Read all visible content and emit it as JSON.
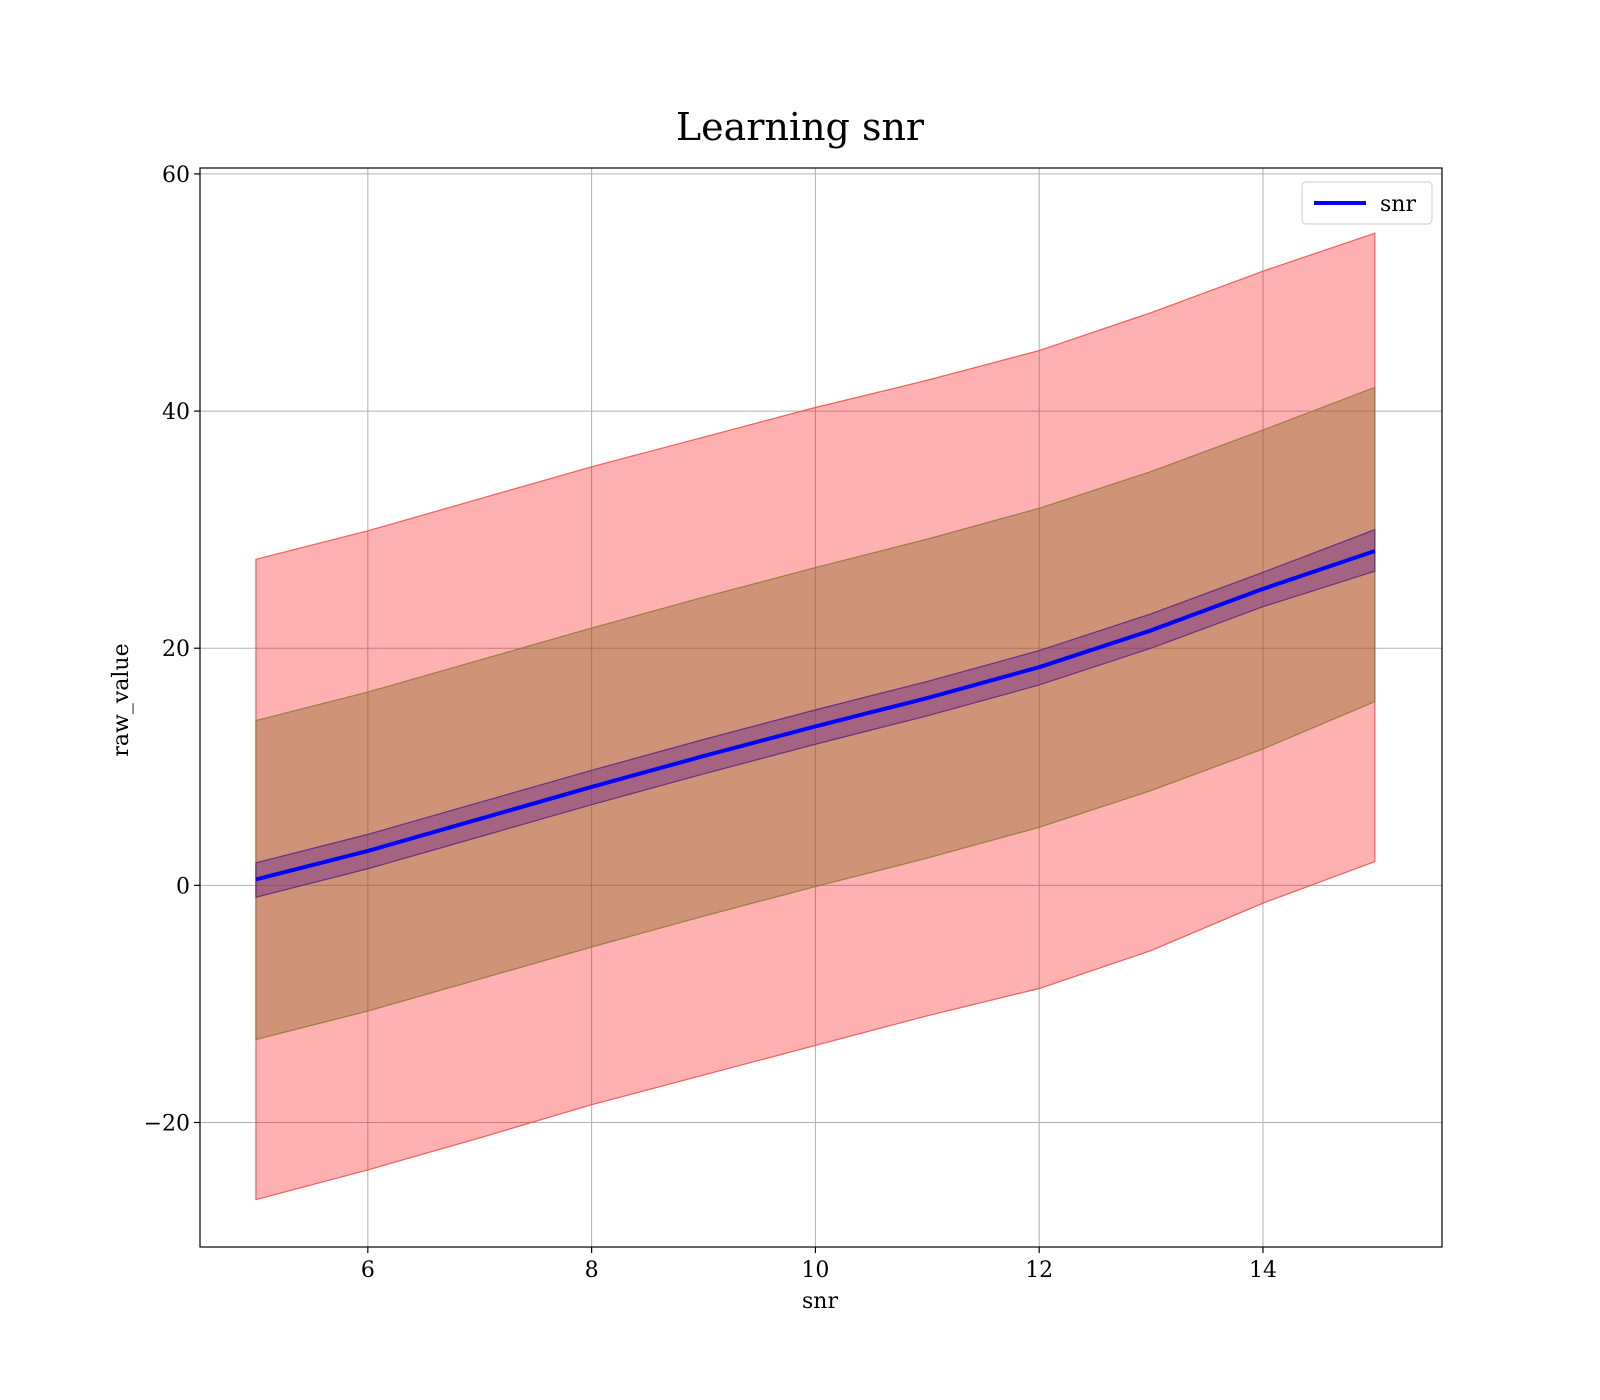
{
  "chart_data": {
    "type": "line",
    "title": "Learning snr",
    "xlabel": "snr",
    "ylabel": "raw_value",
    "xlim": [
      4.5,
      15.6
    ],
    "ylim": [
      -30.5,
      60.5
    ],
    "xticks": [
      6,
      8,
      10,
      12,
      14
    ],
    "xtick_labels": [
      "6",
      "8",
      "10",
      "12",
      "14"
    ],
    "yticks": [
      -20,
      0,
      20,
      40,
      60
    ],
    "ytick_labels": [
      "−20",
      "0",
      "20",
      "40",
      "60"
    ],
    "grid": true,
    "legend": {
      "placement": "upper right",
      "entries": [
        {
          "label": "snr",
          "color": "#0000ff"
        }
      ]
    },
    "series": [
      {
        "name": "snr",
        "color": "#0000ff",
        "x": [
          5,
          6,
          7,
          8,
          9,
          10,
          11,
          12,
          13,
          14,
          15
        ],
        "y": [
          0.5,
          2.9,
          5.6,
          8.3,
          10.9,
          13.4,
          15.8,
          18.4,
          21.5,
          25.0,
          28.2
        ]
      }
    ],
    "bands": [
      {
        "color": "#ff0000",
        "x": [
          5,
          6,
          7,
          8,
          9,
          10,
          11,
          12,
          13,
          14,
          15
        ],
        "lower": [
          -26.5,
          -24.0,
          -21.3,
          -18.5,
          -16.0,
          -13.5,
          -11.0,
          -8.7,
          -5.5,
          -1.5,
          2.0
        ],
        "upper": [
          27.5,
          29.9,
          32.6,
          35.3,
          37.8,
          40.3,
          42.6,
          45.1,
          48.3,
          51.8,
          55.0
        ]
      },
      {
        "color": "#9a7a3a",
        "x": [
          5,
          6,
          7,
          8,
          9,
          10,
          11,
          12,
          13,
          14,
          15
        ],
        "lower": [
          -13.0,
          -10.6,
          -7.9,
          -5.2,
          -2.6,
          -0.1,
          2.3,
          4.9,
          8.0,
          11.5,
          15.5
        ],
        "upper": [
          13.9,
          16.3,
          19.0,
          21.7,
          24.3,
          26.8,
          29.2,
          31.8,
          34.9,
          38.4,
          42.0
        ]
      },
      {
        "color": "#6a2a8a",
        "x": [
          5,
          6,
          7,
          8,
          9,
          10,
          11,
          12,
          13,
          14,
          15
        ],
        "lower": [
          -1.0,
          1.4,
          4.1,
          6.8,
          9.4,
          11.9,
          14.3,
          16.9,
          20.0,
          23.5,
          26.5
        ],
        "upper": [
          1.9,
          4.3,
          7.0,
          9.7,
          12.3,
          14.8,
          17.2,
          19.8,
          22.9,
          26.4,
          30.0
        ]
      }
    ]
  }
}
